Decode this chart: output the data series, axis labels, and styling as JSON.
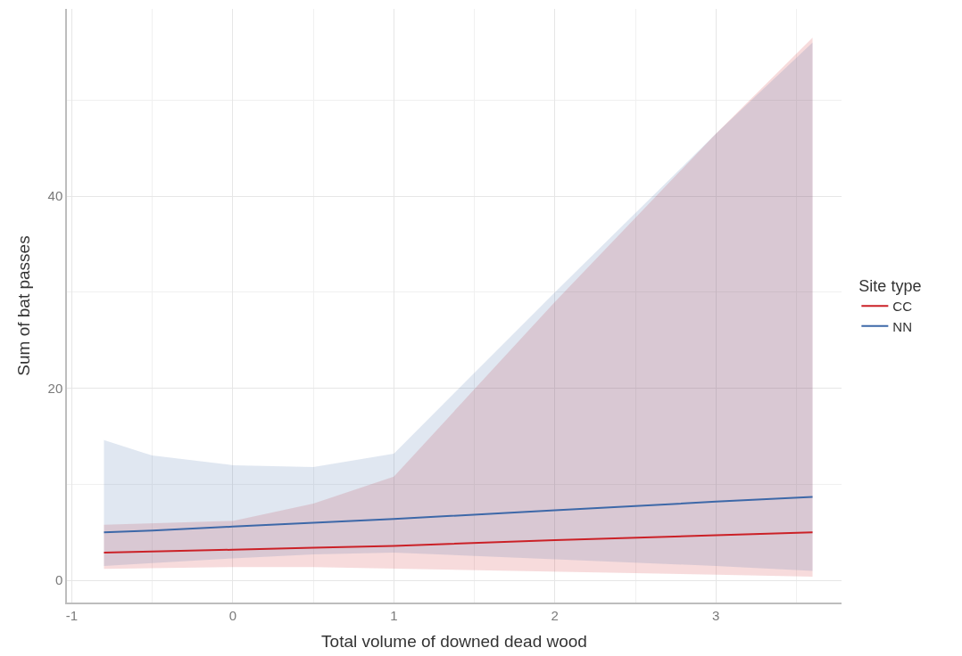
{
  "chart_data": {
    "type": "line",
    "xlabel": "Total volume of downed dead wood",
    "ylabel": "Sum of bat passes",
    "legend_title": "Site type",
    "legend": "right",
    "xlim": [
      -1.03,
      3.78
    ],
    "xticks": [
      {
        "value": -1,
        "label": "-1"
      },
      0,
      1,
      2,
      3
    ],
    "ylim": [
      -2.3,
      59.5
    ],
    "yticks": [
      0,
      20,
      40
    ],
    "grid": true,
    "series": [
      {
        "name": "CC",
        "color": "#cb2127",
        "x": [
          -0.8,
          0,
          0.5,
          1,
          2,
          3,
          3.6
        ],
        "values": [
          2.9,
          3.2,
          3.4,
          3.6,
          4.2,
          4.7,
          5.0
        ],
        "lower": [
          1.2,
          1.4,
          1.4,
          1.2,
          0.9,
          0.6,
          0.4
        ],
        "upper": [
          5.8,
          6.2,
          8.0,
          10.8,
          29.0,
          46.5,
          56.5
        ]
      },
      {
        "name": "NN",
        "color": "#3d68a8",
        "x": [
          -0.8,
          -0.5,
          0,
          0.5,
          1,
          2,
          3,
          3.6
        ],
        "values": [
          5.0,
          5.2,
          5.6,
          6.0,
          6.4,
          7.3,
          8.2,
          8.7
        ],
        "lower": [
          1.5,
          1.8,
          2.3,
          2.7,
          2.9,
          2.2,
          1.5,
          1.0
        ],
        "upper": [
          14.6,
          13.0,
          12.0,
          11.8,
          13.2,
          30.0,
          46.5,
          56.0
        ]
      }
    ]
  }
}
